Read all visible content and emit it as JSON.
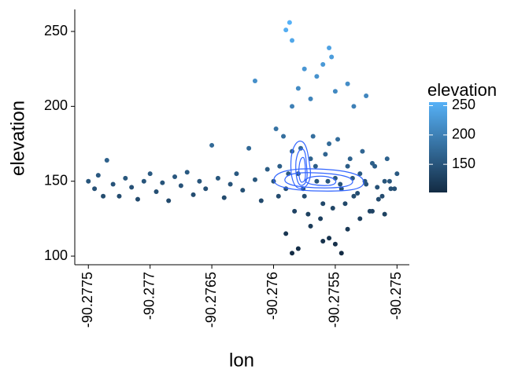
{
  "chart_data": {
    "type": "scatter",
    "x_label": "lon",
    "y_label": "elevation",
    "series": [
      {
        "name": "elevation",
        "x": [
          -90.2775,
          -90.27745,
          -90.27742,
          -90.27738,
          -90.27735,
          -90.2773,
          -90.27725,
          -90.2772,
          -90.27715,
          -90.2771,
          -90.27705,
          -90.277,
          -90.27695,
          -90.2769,
          -90.27685,
          -90.2768,
          -90.27675,
          -90.2767,
          -90.27665,
          -90.2766,
          -90.27655,
          -90.2765,
          -90.27645,
          -90.2764,
          -90.27635,
          -90.2763,
          -90.27625,
          -90.2762,
          -90.27615,
          -90.2761,
          -90.27605,
          -90.2759,
          -90.27587,
          -90.27585,
          -90.27615,
          -90.27555,
          -90.27553,
          -90.2756,
          -90.27575,
          -90.27565,
          -90.2754,
          -90.27525,
          -90.2758,
          -90.2757,
          -90.2755,
          -90.27535,
          -90.27585,
          -90.27585,
          -90.2758,
          -90.27545,
          -90.2759,
          -90.2756,
          -90.27555,
          -90.2754,
          -90.2753,
          -90.2752,
          -90.2751,
          -90.2757,
          -90.2755,
          -90.276,
          -90.27595,
          -90.2759,
          -90.27585,
          -90.2758,
          -90.27575,
          -90.2757,
          -90.27565,
          -90.2756,
          -90.27555,
          -90.2755,
          -90.27545,
          -90.2754,
          -90.27535,
          -90.2753,
          -90.27525,
          -90.2752,
          -90.27515,
          -90.2751,
          -90.27505,
          -90.275,
          -90.27598,
          -90.27592,
          -90.27583,
          -90.27578,
          -90.27572,
          -90.27568,
          -90.27562,
          -90.27558,
          -90.27552,
          -90.27548,
          -90.27542,
          -90.27538,
          -90.27532,
          -90.27528,
          -90.27522,
          -90.27518,
          -90.27512,
          -90.27508,
          -90.27502,
          -90.27596,
          -90.27588,
          -90.27576,
          -90.27566,
          -90.27556,
          -90.27546,
          -90.27536,
          -90.27526,
          -90.27516,
          -90.27506
        ],
        "y": [
          150,
          145,
          154,
          140,
          164,
          148,
          140,
          152,
          146,
          138,
          150,
          155,
          143,
          149,
          137,
          153,
          147,
          156,
          141,
          150,
          145,
          174,
          152,
          139,
          148,
          155,
          144,
          172,
          151,
          137,
          158,
          251,
          256,
          244,
          217,
          239,
          233,
          228,
          225,
          220,
          215,
          207,
          212,
          205,
          210,
          200,
          200,
          102,
          105,
          102,
          115,
          110,
          112,
          118,
          125,
          130,
          128,
          120,
          108,
          150,
          160,
          145,
          170,
          155,
          140,
          165,
          150,
          135,
          175,
          152,
          145,
          160,
          140,
          155,
          148,
          162,
          138,
          150,
          145,
          155,
          185,
          180,
          130,
          172,
          128,
          180,
          125,
          168,
          132,
          178,
          135,
          165,
          142,
          170,
          130,
          160,
          140,
          165,
          145,
          140,
          155,
          145,
          160,
          150,
          148,
          152,
          150,
          146,
          150
        ]
      }
    ],
    "xlim": [
      -90.27761,
      -90.2749
    ],
    "xticks": [
      -90.2775,
      -90.277,
      -90.2765,
      -90.276,
      -90.2755,
      -90.275
    ],
    "ylim": [
      95.3,
      264.7
    ],
    "yticks": [
      100,
      150,
      200,
      250
    ],
    "legend_title": "elevation",
    "colorbar_lim": [
      102,
      256
    ],
    "colorbar_ticks": [
      150,
      200,
      250
    ],
    "color_low": "#132B43",
    "color_high": "#56B1F7",
    "contour_color": "#3366FF"
  }
}
